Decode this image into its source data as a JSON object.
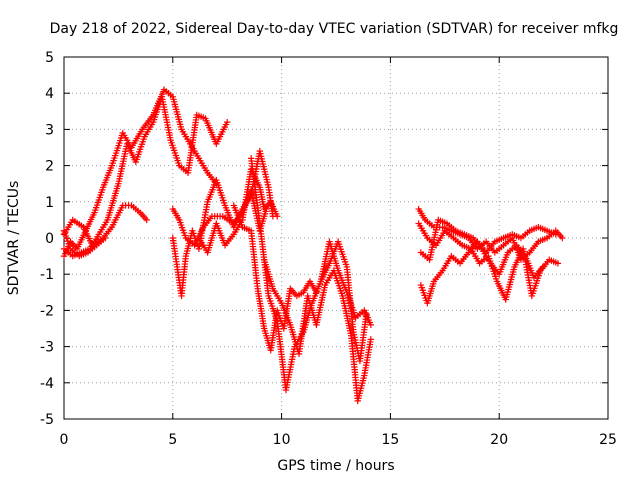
{
  "chart_data": {
    "type": "scatter",
    "title": "Day 218 of 2022, Sidereal Day-to-day VTEC variation (SDTVAR) for receiver mfkg",
    "xlabel": "GPS time / hours",
    "ylabel": "SDTVAR / TECUs",
    "xlim": [
      0,
      25
    ],
    "ylim": [
      -5,
      5
    ],
    "x_ticks": [
      "0",
      "5",
      "10",
      "15",
      "20",
      "25"
    ],
    "y_ticks": [
      "-5",
      "-4",
      "-3",
      "-2",
      "-1",
      "0",
      "1",
      "2",
      "3",
      "4",
      "5"
    ],
    "grid": true,
    "marker": "+",
    "color": "#ff0000",
    "series": [
      {
        "x": [
          0.0,
          0.3,
          0.6,
          1.0,
          1.4,
          1.8,
          2.2,
          2.7,
          3.1,
          3.6,
          4.1,
          4.6,
          5.0,
          5.4,
          5.8,
          6.2,
          6.6,
          7.0
        ],
        "y": [
          -0.5,
          -0.1,
          -0.3,
          0.2,
          0.7,
          1.4,
          2.0,
          2.9,
          2.5,
          3.0,
          3.4,
          4.1,
          3.9,
          3.0,
          2.6,
          2.2,
          1.8,
          1.5
        ]
      },
      {
        "x": [
          0.0,
          0.4,
          0.8,
          1.2,
          1.6,
          2.0,
          2.5,
          2.9,
          3.3,
          3.7,
          4.1,
          4.5,
          4.9,
          5.3,
          5.7,
          6.1,
          6.5,
          7.0,
          7.5
        ],
        "y": [
          -0.3,
          -0.5,
          -0.4,
          -0.3,
          0.1,
          0.5,
          1.5,
          2.6,
          2.1,
          2.8,
          3.2,
          3.9,
          2.7,
          2.0,
          1.8,
          3.4,
          3.3,
          2.6,
          3.2
        ]
      },
      {
        "x": [
          0.0,
          0.4,
          0.9,
          1.3,
          1.8,
          2.2,
          2.7,
          3.1,
          3.5,
          3.8
        ],
        "y": [
          0.1,
          0.5,
          0.3,
          -0.2,
          0.0,
          0.3,
          0.9,
          0.9,
          0.7,
          0.5
        ]
      },
      {
        "x": [
          0.0,
          0.3,
          0.7,
          1.1,
          1.5,
          1.9
        ],
        "y": [
          0.2,
          -0.3,
          -0.5,
          -0.4,
          -0.2,
          0.0
        ]
      },
      {
        "x": [
          5.0,
          5.3,
          5.6,
          6.0,
          6.4,
          6.8,
          7.3,
          7.8,
          8.2,
          8.6,
          9.0,
          9.3
        ],
        "y": [
          0.8,
          0.5,
          0.0,
          -0.2,
          0.3,
          0.6,
          0.6,
          0.4,
          0.7,
          1.3,
          0.2,
          0.8
        ]
      },
      {
        "x": [
          5.0,
          5.2,
          5.4,
          5.6,
          5.9,
          6.2,
          6.6,
          7.0,
          7.4,
          7.8,
          8.2,
          8.6,
          9.0,
          9.4,
          9.6
        ],
        "y": [
          0.0,
          -0.8,
          -1.6,
          -0.5,
          0.2,
          -0.3,
          1.0,
          1.6,
          0.9,
          0.3,
          0.8,
          1.2,
          2.4,
          1.4,
          0.6
        ]
      },
      {
        "x": [
          6.2,
          6.6,
          7.0,
          7.4,
          7.8,
          8.2,
          8.6,
          9.0,
          9.2,
          9.5,
          9.8
        ],
        "y": [
          0.0,
          -0.4,
          0.4,
          -0.2,
          0.1,
          0.5,
          1.9,
          1.4,
          0.8,
          1.0,
          0.6
        ]
      },
      {
        "x": [
          7.8,
          8.2,
          8.6,
          8.9,
          9.2,
          9.5,
          9.8,
          10.1,
          10.4,
          10.7,
          11.0,
          11.3,
          11.6
        ],
        "y": [
          0.9,
          0.3,
          0.2,
          -1.4,
          -2.5,
          -3.1,
          -2.0,
          -2.5,
          -1.4,
          -1.6,
          -1.5,
          -1.2,
          -1.5
        ]
      },
      {
        "x": [
          8.6,
          9.0,
          9.4,
          9.8,
          10.2,
          10.6,
          11.0,
          11.4,
          11.8,
          12.2,
          12.6,
          13.0,
          13.3,
          13.6,
          13.9
        ],
        "y": [
          2.2,
          0.4,
          -1.6,
          -2.3,
          -4.2,
          -3.0,
          -2.6,
          -1.8,
          -1.2,
          -0.7,
          -0.1,
          -0.8,
          -2.6,
          -3.4,
          -2.1
        ]
      },
      {
        "x": [
          9.2,
          9.6,
          10.0,
          10.4,
          10.8,
          11.2,
          11.6,
          12.0,
          12.4,
          12.8,
          13.2,
          13.5,
          13.8,
          14.1
        ],
        "y": [
          -0.6,
          -1.4,
          -1.8,
          -2.4,
          -3.2,
          -1.6,
          -2.4,
          -1.3,
          -0.9,
          -1.6,
          -2.7,
          -4.5,
          -3.8,
          -2.8
        ]
      },
      {
        "x": [
          11.8,
          12.2,
          12.6,
          13.0,
          13.4,
          13.8,
          14.1
        ],
        "y": [
          -1.2,
          -0.1,
          -0.9,
          -1.5,
          -2.2,
          -2.0,
          -2.4
        ]
      },
      {
        "x": [
          16.3,
          16.6,
          17.0,
          17.4,
          17.8,
          18.2,
          18.6,
          19.0,
          19.4,
          19.8,
          20.2,
          20.6,
          21.0,
          21.4,
          21.8,
          22.2,
          22.6,
          22.9
        ],
        "y": [
          0.8,
          0.5,
          0.3,
          0.3,
          0.2,
          0.1,
          0.0,
          -0.3,
          -0.1,
          -0.4,
          -0.2,
          0.0,
          -0.6,
          -0.4,
          -0.1,
          0.0,
          0.2,
          0.0
        ]
      },
      {
        "x": [
          16.3,
          16.7,
          17.1,
          17.5,
          17.9,
          18.3,
          18.7,
          19.1,
          19.5,
          19.9,
          20.3,
          20.7,
          21.1,
          21.5,
          21.9,
          22.3,
          22.7
        ],
        "y": [
          0.4,
          0.0,
          -0.2,
          0.2,
          0.0,
          -0.2,
          -0.3,
          -0.7,
          -0.5,
          -1.2,
          -1.7,
          -0.8,
          -0.3,
          -1.6,
          -0.9,
          -0.6,
          -0.7
        ]
      },
      {
        "x": [
          16.4,
          16.7,
          17.0,
          17.4,
          17.8,
          18.2,
          18.6,
          19.0,
          19.4,
          19.8,
          20.2,
          20.6,
          21.0,
          21.4,
          21.8,
          22.2,
          22.6
        ],
        "y": [
          -1.3,
          -1.8,
          -1.2,
          -0.9,
          -0.5,
          -0.7,
          -0.4,
          -0.1,
          -0.4,
          -0.1,
          0.0,
          0.1,
          0.0,
          0.2,
          0.3,
          0.2,
          0.1
        ]
      },
      {
        "x": [
          16.4,
          16.8,
          17.2,
          17.6,
          18.0,
          18.4,
          18.8,
          19.2,
          19.6,
          20.0,
          20.4,
          20.8,
          21.2,
          21.6,
          22.0
        ],
        "y": [
          -0.4,
          -0.6,
          0.5,
          0.4,
          0.2,
          0.1,
          0.0,
          -0.3,
          -0.7,
          -1.0,
          -0.4,
          -0.2,
          -0.5,
          -1.1,
          -0.8
        ]
      }
    ]
  }
}
